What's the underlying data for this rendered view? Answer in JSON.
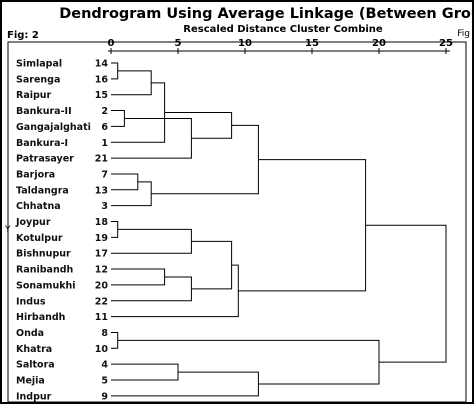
{
  "figure_label": "Fig: 2",
  "side_label_left": "Y",
  "side_label_right": "Fig",
  "chart_data": {
    "type": "dendrogram",
    "title": "Dendrogram Using Average Linkage (Between Groups)",
    "subtitle": "Rescaled Distance Cluster Combine",
    "x_ticks": [
      0,
      5,
      10,
      15,
      20,
      25
    ],
    "xlim": [
      0,
      25
    ],
    "leaves": [
      {
        "label": "Simlapal",
        "num": "14"
      },
      {
        "label": "Sarenga",
        "num": "16"
      },
      {
        "label": "Raipur",
        "num": "15"
      },
      {
        "label": "Bankura-II",
        "num": "2"
      },
      {
        "label": "Gangajalghati",
        "num": "6"
      },
      {
        "label": "Bankura-I",
        "num": "1"
      },
      {
        "label": "Patrasayer",
        "num": "21"
      },
      {
        "label": "Barjora",
        "num": "7"
      },
      {
        "label": "Taldangra",
        "num": "13"
      },
      {
        "label": "Chhatna",
        "num": "3"
      },
      {
        "label": "Joypur",
        "num": "18"
      },
      {
        "label": "Kotulpur",
        "num": "19"
      },
      {
        "label": "Bishnupur",
        "num": "17"
      },
      {
        "label": "Ranibandh",
        "num": "12"
      },
      {
        "label": "Sonamukhi",
        "num": "20"
      },
      {
        "label": "Indus",
        "num": "22"
      },
      {
        "label": "Hirbandh",
        "num": "11"
      },
      {
        "label": "Onda",
        "num": "8"
      },
      {
        "label": "Khatra",
        "num": "10"
      },
      {
        "label": "Saltora",
        "num": "4"
      },
      {
        "label": "Mejia",
        "num": "5"
      },
      {
        "label": "Indpur",
        "num": "9"
      }
    ],
    "merges": [
      {
        "a": 0,
        "b": 1,
        "dist": 0.5
      },
      {
        "a": 3,
        "b": 4,
        "dist": 1.0
      },
      {
        "a": 7,
        "b": 8,
        "dist": 2.0
      },
      {
        "a": 10,
        "b": 11,
        "dist": 0.5
      },
      {
        "a": 13,
        "b": 14,
        "dist": 4.0
      },
      {
        "a": 17,
        "b": 18,
        "dist": 0.5
      },
      {
        "a": 19,
        "b": 20,
        "dist": 5.0
      },
      {
        "a": "m0",
        "b": 2,
        "dist": 3.0
      },
      {
        "a": "m7",
        "b": 5,
        "dist": 4.0
      },
      {
        "a": "m1",
        "b": 6,
        "dist": 6.0
      },
      {
        "a": "m2",
        "b": 9,
        "dist": 3.0
      },
      {
        "a": "m3",
        "b": 12,
        "dist": 6.0
      },
      {
        "a": "m4",
        "b": 15,
        "dist": 6.0
      },
      {
        "a": "m8",
        "b": "m9",
        "dist": 9.0
      },
      {
        "a": "m13",
        "b": "m10",
        "dist": 11.0
      },
      {
        "a": "m11",
        "b": "m12",
        "dist": 9.0
      },
      {
        "a": "m15",
        "b": 16,
        "dist": 9.5
      },
      {
        "a": "m14",
        "b": "m16",
        "dist": 19.0
      },
      {
        "a": "m6",
        "b": 21,
        "dist": 11.0
      },
      {
        "a": "m5",
        "b": "m18",
        "dist": 20.0
      },
      {
        "a": "m17",
        "b": "m19",
        "dist": 25.0
      }
    ]
  }
}
